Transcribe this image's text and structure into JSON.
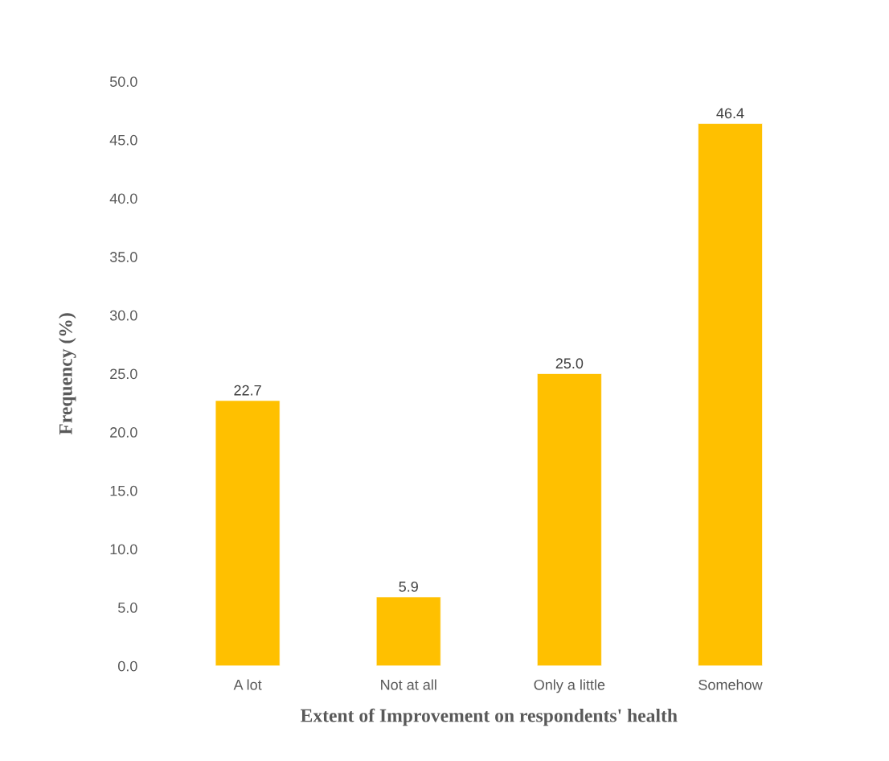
{
  "chart_data": {
    "type": "bar",
    "xlabel": "Extent of Improvement on respondents' health",
    "ylabel": "Frequency (%)",
    "categories": [
      "A lot",
      "Not at all",
      "Only a little",
      "Somehow"
    ],
    "values": [
      22.7,
      5.9,
      25.0,
      46.4
    ],
    "value_labels": [
      "22.7",
      "5.9",
      "25.0",
      "46.4"
    ],
    "color": "#ffc000",
    "ylim": [
      0,
      50
    ],
    "yticks": [
      {
        "value": 0,
        "label": "0.0"
      },
      {
        "value": 5,
        "label": "5.0"
      },
      {
        "value": 10,
        "label": "10.0"
      },
      {
        "value": 15,
        "label": "15.0"
      },
      {
        "value": 20,
        "label": "20.0"
      },
      {
        "value": 25,
        "label": "25.0"
      },
      {
        "value": 30,
        "label": "30.0"
      },
      {
        "value": 35,
        "label": "35.0"
      },
      {
        "value": 40,
        "label": "40.0"
      },
      {
        "value": 45,
        "label": "45.0"
      },
      {
        "value": 50,
        "label": "50.0"
      }
    ],
    "grid": false,
    "legend": false
  }
}
